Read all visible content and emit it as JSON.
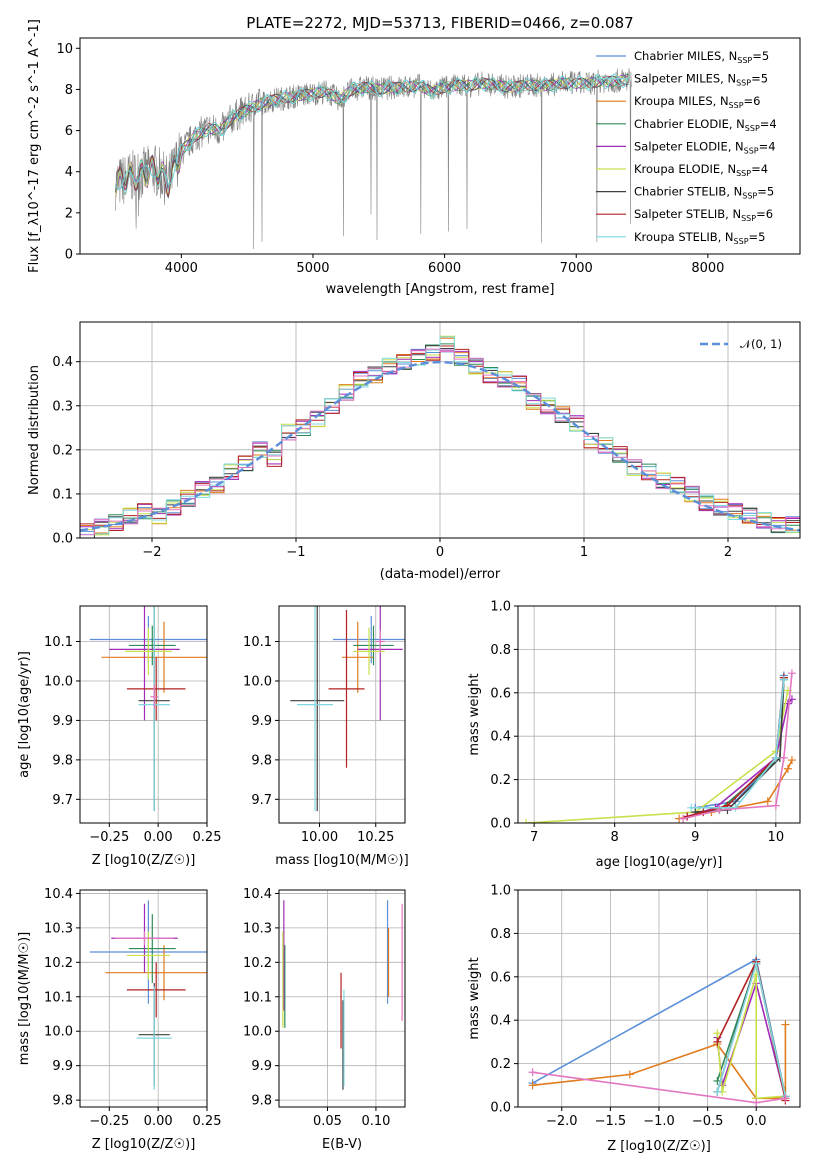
{
  "figure": {
    "title": "PLATE=2272, MJD=53713, FIBERID=0466, z=0.087"
  },
  "chart_data": [
    {
      "id": "spectrum",
      "type": "line",
      "title": "PLATE=2272, MJD=53713, FIBERID=0466, z=0.087",
      "xlabel": "wavelength [Angstrom, rest frame]",
      "ylabel": "Flux [f_λ10^-17 erg cm^-2 s^-1 A^-1]",
      "xlim": [
        3230,
        8700
      ],
      "ylim": [
        0,
        10.5
      ],
      "xticks": [
        "4000",
        "5000",
        "6000",
        "7000",
        "8000"
      ],
      "yticks": [
        "0",
        "2",
        "4",
        "6",
        "8",
        "10"
      ],
      "grid": false,
      "legend_position": "right",
      "data_color": "#808080",
      "observed_wavelength": [
        3500,
        3600,
        3700,
        3800,
        3900,
        4000,
        4100,
        4200,
        4300,
        4400,
        4500,
        4600,
        4700,
        4800,
        4900,
        5000,
        5100,
        5200,
        5300,
        5400,
        5500,
        5600,
        5700,
        5800,
        5900,
        6000,
        6100,
        6200,
        6300,
        6400,
        6500,
        6600,
        6700,
        6800,
        6900,
        7000,
        7100,
        7200,
        7300,
        7400
      ],
      "observed_flux": [
        3.4,
        3.7,
        3.9,
        4.1,
        3.5,
        5.0,
        5.7,
        6.1,
        6.0,
        6.7,
        7.0,
        7.3,
        7.5,
        7.6,
        7.7,
        7.8,
        7.9,
        7.5,
        8.0,
        8.1,
        8.0,
        8.1,
        8.1,
        8.2,
        7.9,
        8.1,
        8.2,
        8.2,
        8.3,
        8.2,
        8.1,
        8.2,
        8.2,
        8.2,
        8.3,
        8.3,
        8.3,
        8.4,
        8.4,
        8.5
      ],
      "legend": [
        {
          "label": "Chabrier MILES, N",
          "sub": "SSP",
          "suffix": "=5",
          "color": "#5b8fd9"
        },
        {
          "label": "Salpeter MILES, N",
          "sub": "SSP",
          "suffix": "=5",
          "color": "#7fd0d8"
        },
        {
          "label": "Kroupa MILES, N",
          "sub": "SSP",
          "suffix": "=6",
          "color": "#e07b1e"
        },
        {
          "label": "Chabrier ELODIE, N",
          "sub": "SSP",
          "suffix": "=4",
          "color": "#2e8b57"
        },
        {
          "label": "Salpeter ELODIE, N",
          "sub": "SSP",
          "suffix": "=4",
          "color": "#a02cb8"
        },
        {
          "label": "Kroupa ELODIE, N",
          "sub": "SSP",
          "suffix": "=4",
          "color": "#c8e04a"
        },
        {
          "label": "Chabrier STELIB, N",
          "sub": "SSP",
          "suffix": "=5",
          "color": "#404040"
        },
        {
          "label": "Salpeter STELIB, N",
          "sub": "SSP",
          "suffix": "=6",
          "color": "#b22222"
        },
        {
          "label": "Kroupa STELIB, N",
          "sub": "SSP",
          "suffix": "=5",
          "color": "#7fd8e0"
        }
      ],
      "model_color": "#6fd3d8"
    },
    {
      "id": "residuals",
      "type": "line",
      "xlabel": "(data-model)/error",
      "ylabel": "Normed distribution",
      "xlim": [
        -2.5,
        2.5
      ],
      "ylim": [
        0,
        0.49
      ],
      "xticks": [
        "−2",
        "−1",
        "0",
        "1",
        "2"
      ],
      "yticks": [
        "0.0",
        "0.1",
        "0.2",
        "0.3",
        "0.4"
      ],
      "grid": true,
      "legend_position": "top-right",
      "gaussian_label": "𝒩(0, 1)",
      "gaussian_color": "#5b8fd9",
      "hist_colors": [
        "#5b8fd9",
        "#e07b1e",
        "#2e8b57",
        "#a02cb8",
        "#c8e04a",
        "#404040",
        "#b22222",
        "#7fd8e0",
        "#e377c2"
      ],
      "bin_centers": [
        -2.45,
        -2.35,
        -2.25,
        -2.15,
        -2.05,
        -1.95,
        -1.85,
        -1.75,
        -1.65,
        -1.55,
        -1.45,
        -1.35,
        -1.25,
        -1.15,
        -1.05,
        -0.95,
        -0.85,
        -0.75,
        -0.65,
        -0.55,
        -0.45,
        -0.35,
        -0.25,
        -0.15,
        -0.05,
        0.05,
        0.15,
        0.25,
        0.35,
        0.45,
        0.55,
        0.65,
        0.75,
        0.85,
        0.95,
        1.05,
        1.15,
        1.25,
        1.35,
        1.45,
        1.55,
        1.65,
        1.75,
        1.85,
        1.95,
        2.05,
        2.15,
        2.25,
        2.35,
        2.45
      ],
      "hist_values": [
        0.015,
        0.025,
        0.035,
        0.05,
        0.06,
        0.05,
        0.07,
        0.09,
        0.11,
        0.12,
        0.15,
        0.17,
        0.2,
        0.18,
        0.24,
        0.25,
        0.27,
        0.3,
        0.33,
        0.36,
        0.37,
        0.39,
        0.4,
        0.41,
        0.42,
        0.44,
        0.41,
        0.39,
        0.37,
        0.36,
        0.35,
        0.31,
        0.3,
        0.28,
        0.26,
        0.22,
        0.21,
        0.19,
        0.16,
        0.15,
        0.13,
        0.12,
        0.1,
        0.08,
        0.07,
        0.06,
        0.05,
        0.04,
        0.03,
        0.03
      ]
    },
    {
      "id": "age_vs_Z",
      "type": "scatter",
      "xlabel": "Z [log10(Z/Z☉)]",
      "ylabel": "age [log10(age/yr)]",
      "xlim": [
        -0.4,
        0.25
      ],
      "ylim": [
        9.64,
        10.19
      ],
      "xticks": [
        "−0.25",
        "0.00",
        "0.25"
      ],
      "yticks": [
        "9.7",
        "9.8",
        "9.9",
        "10.0",
        "10.1"
      ],
      "grid": true,
      "points": [
        {
          "x": -0.05,
          "xerr": 0.3,
          "y": 10.105,
          "yerr": 0.06,
          "color": "#5b8fd9"
        },
        {
          "x": 0.03,
          "xerr": 0.32,
          "y": 10.06,
          "yerr": 0.09,
          "color": "#e07b1e"
        },
        {
          "x": -0.03,
          "xerr": 0.12,
          "y": 10.09,
          "yerr": 0.05,
          "color": "#2e8b57"
        },
        {
          "x": -0.07,
          "xerr": 0.18,
          "y": 10.08,
          "yerr": 0.18,
          "color": "#a02cb8"
        },
        {
          "x": -0.05,
          "xerr": 0.12,
          "y": 10.075,
          "yerr": 0.06,
          "color": "#c8e04a"
        },
        {
          "x": -0.02,
          "xerr": 0.08,
          "y": 9.95,
          "yerr": 0.28,
          "color": "#404040"
        },
        {
          "x": -0.01,
          "xerr": 0.15,
          "y": 9.98,
          "yerr": 0.08,
          "color": "#b22222"
        },
        {
          "x": -0.02,
          "xerr": 0.08,
          "y": 9.94,
          "yerr": 0.27,
          "color": "#7fd8e0"
        },
        {
          "x": -0.02,
          "xerr": 0.02,
          "y": 9.96,
          "yerr": 0.03,
          "color": "#e377c2"
        }
      ]
    },
    {
      "id": "age_vs_mass",
      "type": "scatter",
      "xlabel": "mass [log10(M/M☉)]",
      "ylabel": "",
      "xlim": [
        9.82,
        10.38
      ],
      "ylim": [
        9.64,
        10.19
      ],
      "xticks": [
        "10.00",
        "10.25"
      ],
      "yticks": [
        "9.7",
        "9.8",
        "9.9",
        "10.0",
        "10.1"
      ],
      "grid": true,
      "points": [
        {
          "x": 10.23,
          "xerr": 0.17,
          "y": 10.105,
          "yerr": 0.06,
          "color": "#5b8fd9"
        },
        {
          "x": 10.17,
          "xerr": 0.07,
          "y": 10.06,
          "yerr": 0.09,
          "color": "#e07b1e"
        },
        {
          "x": 10.24,
          "xerr": 0.09,
          "y": 10.09,
          "yerr": 0.05,
          "color": "#2e8b57"
        },
        {
          "x": 10.27,
          "xerr": 0.1,
          "y": 10.08,
          "yerr": 0.18,
          "color": "#a02cb8"
        },
        {
          "x": 10.22,
          "xerr": 0.07,
          "y": 10.075,
          "yerr": 0.06,
          "color": "#c8e04a"
        },
        {
          "x": 9.99,
          "xerr": 0.12,
          "y": 9.95,
          "yerr": 0.28,
          "color": "#404040"
        },
        {
          "x": 10.12,
          "xerr": 0.08,
          "y": 9.98,
          "yerr": 0.2,
          "color": "#b22222"
        },
        {
          "x": 9.98,
          "xerr": 0.08,
          "y": 9.94,
          "yerr": 0.27,
          "color": "#7fd8e0"
        },
        {
          "x": 10.27,
          "xerr": 0.02,
          "y": 10.1,
          "yerr": 0.03,
          "color": "#e377c2"
        }
      ]
    },
    {
      "id": "weight_vs_age",
      "type": "line",
      "xlabel": "age [log10(age/yr)]",
      "ylabel": "mass weight",
      "xlim": [
        6.8,
        10.3
      ],
      "ylim": [
        0,
        1
      ],
      "xticks": [
        "7",
        "8",
        "9",
        "10"
      ],
      "yticks": [
        "0.0",
        "0.2",
        "0.4",
        "0.6",
        "0.8",
        "1.0"
      ],
      "grid": true,
      "series": [
        {
          "color": "#5b8fd9",
          "x": [
            9.0,
            9.5,
            10.0,
            10.1
          ],
          "y": [
            0.07,
            0.1,
            0.3,
            0.68
          ]
        },
        {
          "color": "#e07b1e",
          "x": [
            8.8,
            9.2,
            9.9,
            10.15,
            10.2
          ],
          "y": [
            0.02,
            0.05,
            0.1,
            0.25,
            0.29
          ]
        },
        {
          "color": "#2e8b57",
          "x": [
            9.0,
            9.3,
            10.05,
            10.1
          ],
          "y": [
            0.05,
            0.06,
            0.3,
            0.66
          ]
        },
        {
          "color": "#a02cb8",
          "x": [
            8.9,
            9.25,
            10.0,
            10.15,
            10.2
          ],
          "y": [
            0.03,
            0.07,
            0.3,
            0.55,
            0.57
          ]
        },
        {
          "color": "#c8e04a",
          "x": [
            6.9,
            9.0,
            10.0,
            10.15
          ],
          "y": [
            0.0,
            0.05,
            0.33,
            0.61
          ]
        },
        {
          "color": "#404040",
          "x": [
            9.0,
            9.4,
            10.05,
            10.1
          ],
          "y": [
            0.05,
            0.06,
            0.3,
            0.67
          ]
        },
        {
          "color": "#b22222",
          "x": [
            8.9,
            9.1,
            9.4,
            10.0,
            10.1
          ],
          "y": [
            0.03,
            0.05,
            0.08,
            0.3,
            0.67
          ]
        },
        {
          "color": "#7fd8e0",
          "x": [
            8.95,
            9.5,
            10.0,
            10.1
          ],
          "y": [
            0.07,
            0.07,
            0.3,
            0.66
          ]
        },
        {
          "color": "#e377c2",
          "x": [
            8.85,
            9.3,
            10.0,
            10.1,
            10.2
          ],
          "y": [
            0.02,
            0.06,
            0.08,
            0.3,
            0.69
          ]
        }
      ]
    },
    {
      "id": "mass_vs_Z",
      "type": "scatter",
      "xlabel": "Z [log10(Z/Z☉)]",
      "ylabel": "mass [log10(M/M☉)]",
      "xlim": [
        -0.4,
        0.25
      ],
      "ylim": [
        9.78,
        10.41
      ],
      "xticks": [
        "−0.25",
        "0.00",
        "0.25"
      ],
      "yticks": [
        "9.8",
        "9.9",
        "10.0",
        "10.1",
        "10.2",
        "10.3",
        "10.4"
      ],
      "grid": true,
      "points": [
        {
          "x": -0.05,
          "xerr": 0.3,
          "y": 10.23,
          "yerr": 0.15,
          "color": "#5b8fd9"
        },
        {
          "x": 0.03,
          "xerr": 0.3,
          "y": 10.17,
          "yerr": 0.08,
          "color": "#e07b1e"
        },
        {
          "x": -0.03,
          "xerr": 0.12,
          "y": 10.24,
          "yerr": 0.1,
          "color": "#2e8b57"
        },
        {
          "x": -0.07,
          "xerr": 0.17,
          "y": 10.27,
          "yerr": 0.1,
          "color": "#a02cb8"
        },
        {
          "x": -0.05,
          "xerr": 0.11,
          "y": 10.22,
          "yerr": 0.07,
          "color": "#c8e04a"
        },
        {
          "x": -0.02,
          "xerr": 0.08,
          "y": 9.99,
          "yerr": 0.15,
          "color": "#404040"
        },
        {
          "x": -0.01,
          "xerr": 0.15,
          "y": 10.12,
          "yerr": 0.08,
          "color": "#b22222"
        },
        {
          "x": -0.02,
          "xerr": 0.09,
          "y": 9.98,
          "yerr": 0.15,
          "color": "#7fd8e0"
        },
        {
          "x": -0.07,
          "xerr": 0.15,
          "y": 10.27,
          "yerr": 0.02,
          "color": "#e377c2"
        }
      ]
    },
    {
      "id": "mass_vs_EBV",
      "type": "scatter",
      "xlabel": "E(B-V)",
      "ylabel": "",
      "xlim": [
        0.0,
        0.13
      ],
      "ylim": [
        9.78,
        10.41
      ],
      "xticks": [
        "0.05",
        "0.10"
      ],
      "yticks": [
        "9.8",
        "9.9",
        "10.0",
        "10.1",
        "10.2",
        "10.3",
        "10.4"
      ],
      "grid": true,
      "points": [
        {
          "x": 0.112,
          "xerr": 0.0,
          "y": 10.23,
          "yerr": 0.15,
          "color": "#5b8fd9"
        },
        {
          "x": 0.113,
          "xerr": 0.0,
          "y": 10.2,
          "yerr": 0.1,
          "color": "#e07b1e"
        },
        {
          "x": 0.006,
          "xerr": 0.0,
          "y": 10.13,
          "yerr": 0.12,
          "color": "#2e8b57"
        },
        {
          "x": 0.005,
          "xerr": 0.0,
          "y": 10.22,
          "yerr": 0.16,
          "color": "#a02cb8"
        },
        {
          "x": 0.004,
          "xerr": 0.0,
          "y": 10.15,
          "yerr": 0.14,
          "color": "#c8e04a"
        },
        {
          "x": 0.066,
          "xerr": 0.0,
          "y": 9.96,
          "yerr": 0.13,
          "color": "#404040"
        },
        {
          "x": 0.064,
          "xerr": 0.0,
          "y": 10.06,
          "yerr": 0.11,
          "color": "#b22222"
        },
        {
          "x": 0.067,
          "xerr": 0.0,
          "y": 9.98,
          "yerr": 0.14,
          "color": "#7fd8e0"
        },
        {
          "x": 0.127,
          "xerr": 0.0,
          "y": 10.2,
          "yerr": 0.17,
          "color": "#e377c2"
        }
      ]
    },
    {
      "id": "weight_vs_Z",
      "type": "line",
      "xlabel": "Z [log10(Z/Z☉)]",
      "ylabel": "mass weight",
      "xlim": [
        -2.45,
        0.45
      ],
      "ylim": [
        0,
        1
      ],
      "xticks": [
        "−2.0",
        "−1.5",
        "−1.0",
        "−0.5",
        "0.0"
      ],
      "yticks": [
        "0.0",
        "0.2",
        "0.4",
        "0.6",
        "0.8",
        "1.0"
      ],
      "grid": true,
      "series": [
        {
          "color": "#5b8fd9",
          "x": [
            -2.3,
            0.0,
            0.3
          ],
          "y": [
            0.11,
            0.68,
            0.05
          ]
        },
        {
          "color": "#e07b1e",
          "x": [
            -2.3,
            -1.3,
            -0.4,
            0.0,
            0.3,
            0.3
          ],
          "y": [
            0.1,
            0.15,
            0.29,
            0.04,
            0.04,
            0.38
          ]
        },
        {
          "color": "#2e8b57",
          "x": [
            -0.4,
            0.0,
            0.3
          ],
          "y": [
            0.12,
            0.66,
            0.05
          ]
        },
        {
          "color": "#a02cb8",
          "x": [
            -0.4,
            -0.35,
            0.0,
            0.3
          ],
          "y": [
            0.32,
            0.1,
            0.57,
            0.04
          ]
        },
        {
          "color": "#c8e04a",
          "x": [
            -0.4,
            -0.35,
            0.0,
            0.0,
            0.3
          ],
          "y": [
            0.34,
            0.07,
            0.61,
            0.04,
            0.05
          ]
        },
        {
          "color": "#404040",
          "x": [
            -0.4,
            0.0,
            0.3
          ],
          "y": [
            0.07,
            0.67,
            0.05
          ]
        },
        {
          "color": "#b22222",
          "x": [
            -0.4,
            0.0,
            0.3
          ],
          "y": [
            0.3,
            0.67,
            0.03
          ]
        },
        {
          "color": "#7fd8e0",
          "x": [
            -0.4,
            0.0,
            0.3
          ],
          "y": [
            0.07,
            0.66,
            0.05
          ]
        },
        {
          "color": "#e377c2",
          "x": [
            -2.3,
            0.0,
            0.3
          ],
          "y": [
            0.16,
            0.02,
            0.04
          ]
        }
      ]
    }
  ]
}
